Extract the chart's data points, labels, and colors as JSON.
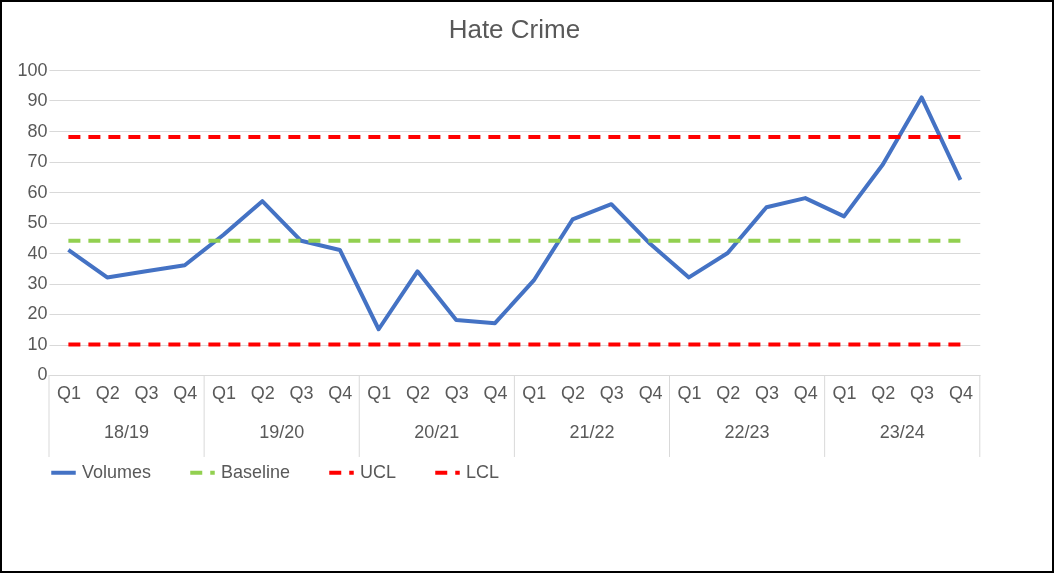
{
  "chart_data": {
    "type": "line",
    "title": "Hate Crime",
    "categories": [
      "Q1",
      "Q2",
      "Q3",
      "Q4",
      "Q1",
      "Q2",
      "Q3",
      "Q4",
      "Q1",
      "Q2",
      "Q3",
      "Q4",
      "Q1",
      "Q2",
      "Q3",
      "Q4",
      "Q1",
      "Q2",
      "Q3",
      "Q4",
      "Q1",
      "Q2",
      "Q3",
      "Q4"
    ],
    "annotations": [
      "18/19",
      "19/20",
      "20/21",
      "21/22",
      "22/23",
      "23/24"
    ],
    "series": [
      {
        "name": "Volumes",
        "color": "#4472c4",
        "line_style": "solid",
        "values": [
          41,
          32,
          34,
          36,
          46,
          57,
          44,
          41,
          15,
          34,
          18,
          17,
          31,
          51,
          56,
          43,
          32,
          40,
          55,
          58,
          52,
          69,
          91,
          64
        ]
      },
      {
        "name": "Baseline",
        "color": "#92d050",
        "line_style": "dashed",
        "values": [
          44,
          44,
          44,
          44,
          44,
          44,
          44,
          44,
          44,
          44,
          44,
          44,
          44,
          44,
          44,
          44,
          44,
          44,
          44,
          44,
          44,
          44,
          44,
          44
        ]
      },
      {
        "name": "UCL",
        "color": "#ff0000",
        "line_style": "dashed",
        "values": [
          78,
          78,
          78,
          78,
          78,
          78,
          78,
          78,
          78,
          78,
          78,
          78,
          78,
          78,
          78,
          78,
          78,
          78,
          78,
          78,
          78,
          78,
          78,
          78
        ]
      },
      {
        "name": "LCL",
        "color": "#ff0000",
        "line_style": "dashed",
        "values": [
          10,
          10,
          10,
          10,
          10,
          10,
          10,
          10,
          10,
          10,
          10,
          10,
          10,
          10,
          10,
          10,
          10,
          10,
          10,
          10,
          10,
          10,
          10,
          10
        ]
      }
    ],
    "ylim": [
      0,
      100
    ],
    "yticks": [
      0,
      10,
      20,
      30,
      40,
      50,
      60,
      70,
      80,
      90,
      100
    ],
    "grid": "y",
    "legend": "bottom",
    "marker": "none"
  }
}
